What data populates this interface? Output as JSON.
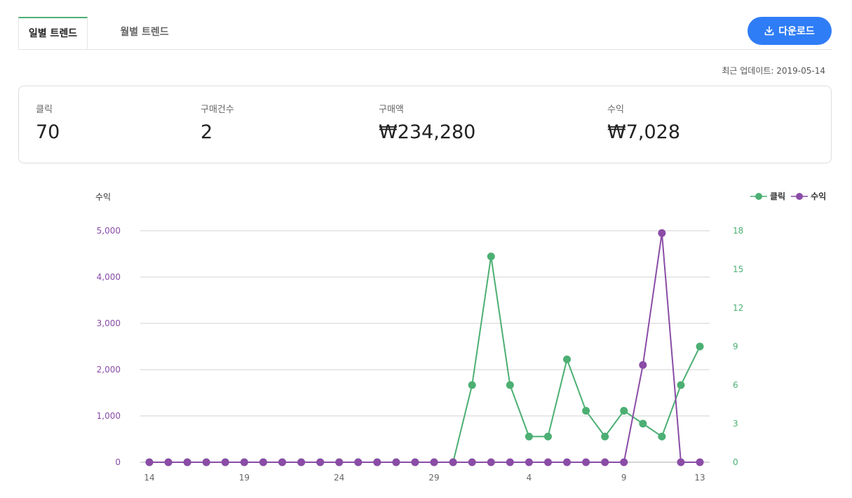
{
  "tabs": [
    {
      "label": "일별 트렌드",
      "active": true
    },
    {
      "label": "월별 트렌드",
      "active": false
    }
  ],
  "download": {
    "label": "다운로드",
    "icon": "download-icon"
  },
  "last_updated": "최근 업데이트: 2019-05-14",
  "summary": [
    {
      "label": "클릭",
      "value": "70"
    },
    {
      "label": "구매건수",
      "value": "2"
    },
    {
      "label": "구매액",
      "value": "₩234,280"
    },
    {
      "label": "수익",
      "value": "₩7,028"
    }
  ],
  "colors": {
    "accent": "#2f7df6",
    "clicks": "#4caf73",
    "revenue": "#8a4ca6",
    "tab_indicator": "#4caf73"
  },
  "chart_data": {
    "type": "line",
    "ylabel_left": "수익",
    "x": [
      14,
      15,
      16,
      17,
      18,
      19,
      20,
      21,
      22,
      23,
      24,
      25,
      26,
      27,
      28,
      29,
      30,
      1,
      2,
      3,
      4,
      5,
      6,
      7,
      8,
      9,
      10,
      11,
      12,
      13
    ],
    "x_tick_labels": [
      "14",
      "19",
      "24",
      "29",
      "4",
      "9",
      "13"
    ],
    "y_left": {
      "range": [
        0,
        5000
      ],
      "ticks": [
        "0",
        "1,000",
        "2,000",
        "3,000",
        "4,000",
        "5,000"
      ]
    },
    "y_right": {
      "range": [
        0,
        18
      ],
      "ticks": [
        "0",
        "3",
        "6",
        "9",
        "12",
        "15",
        "18"
      ]
    },
    "grid": true,
    "legend_position": "top-right",
    "series": [
      {
        "name": "클릭",
        "axis": "right",
        "values": [
          0,
          0,
          0,
          0,
          0,
          0,
          0,
          0,
          0,
          0,
          0,
          0,
          0,
          0,
          0,
          0,
          0,
          6,
          16,
          6,
          2,
          2,
          8,
          4,
          2,
          4,
          3,
          2,
          6,
          9
        ]
      },
      {
        "name": "수익",
        "axis": "left",
        "values": [
          0,
          0,
          0,
          0,
          0,
          0,
          0,
          0,
          0,
          0,
          0,
          0,
          0,
          0,
          0,
          0,
          0,
          0,
          0,
          0,
          0,
          0,
          0,
          0,
          0,
          0,
          2100,
          4950,
          0,
          0
        ]
      }
    ]
  }
}
